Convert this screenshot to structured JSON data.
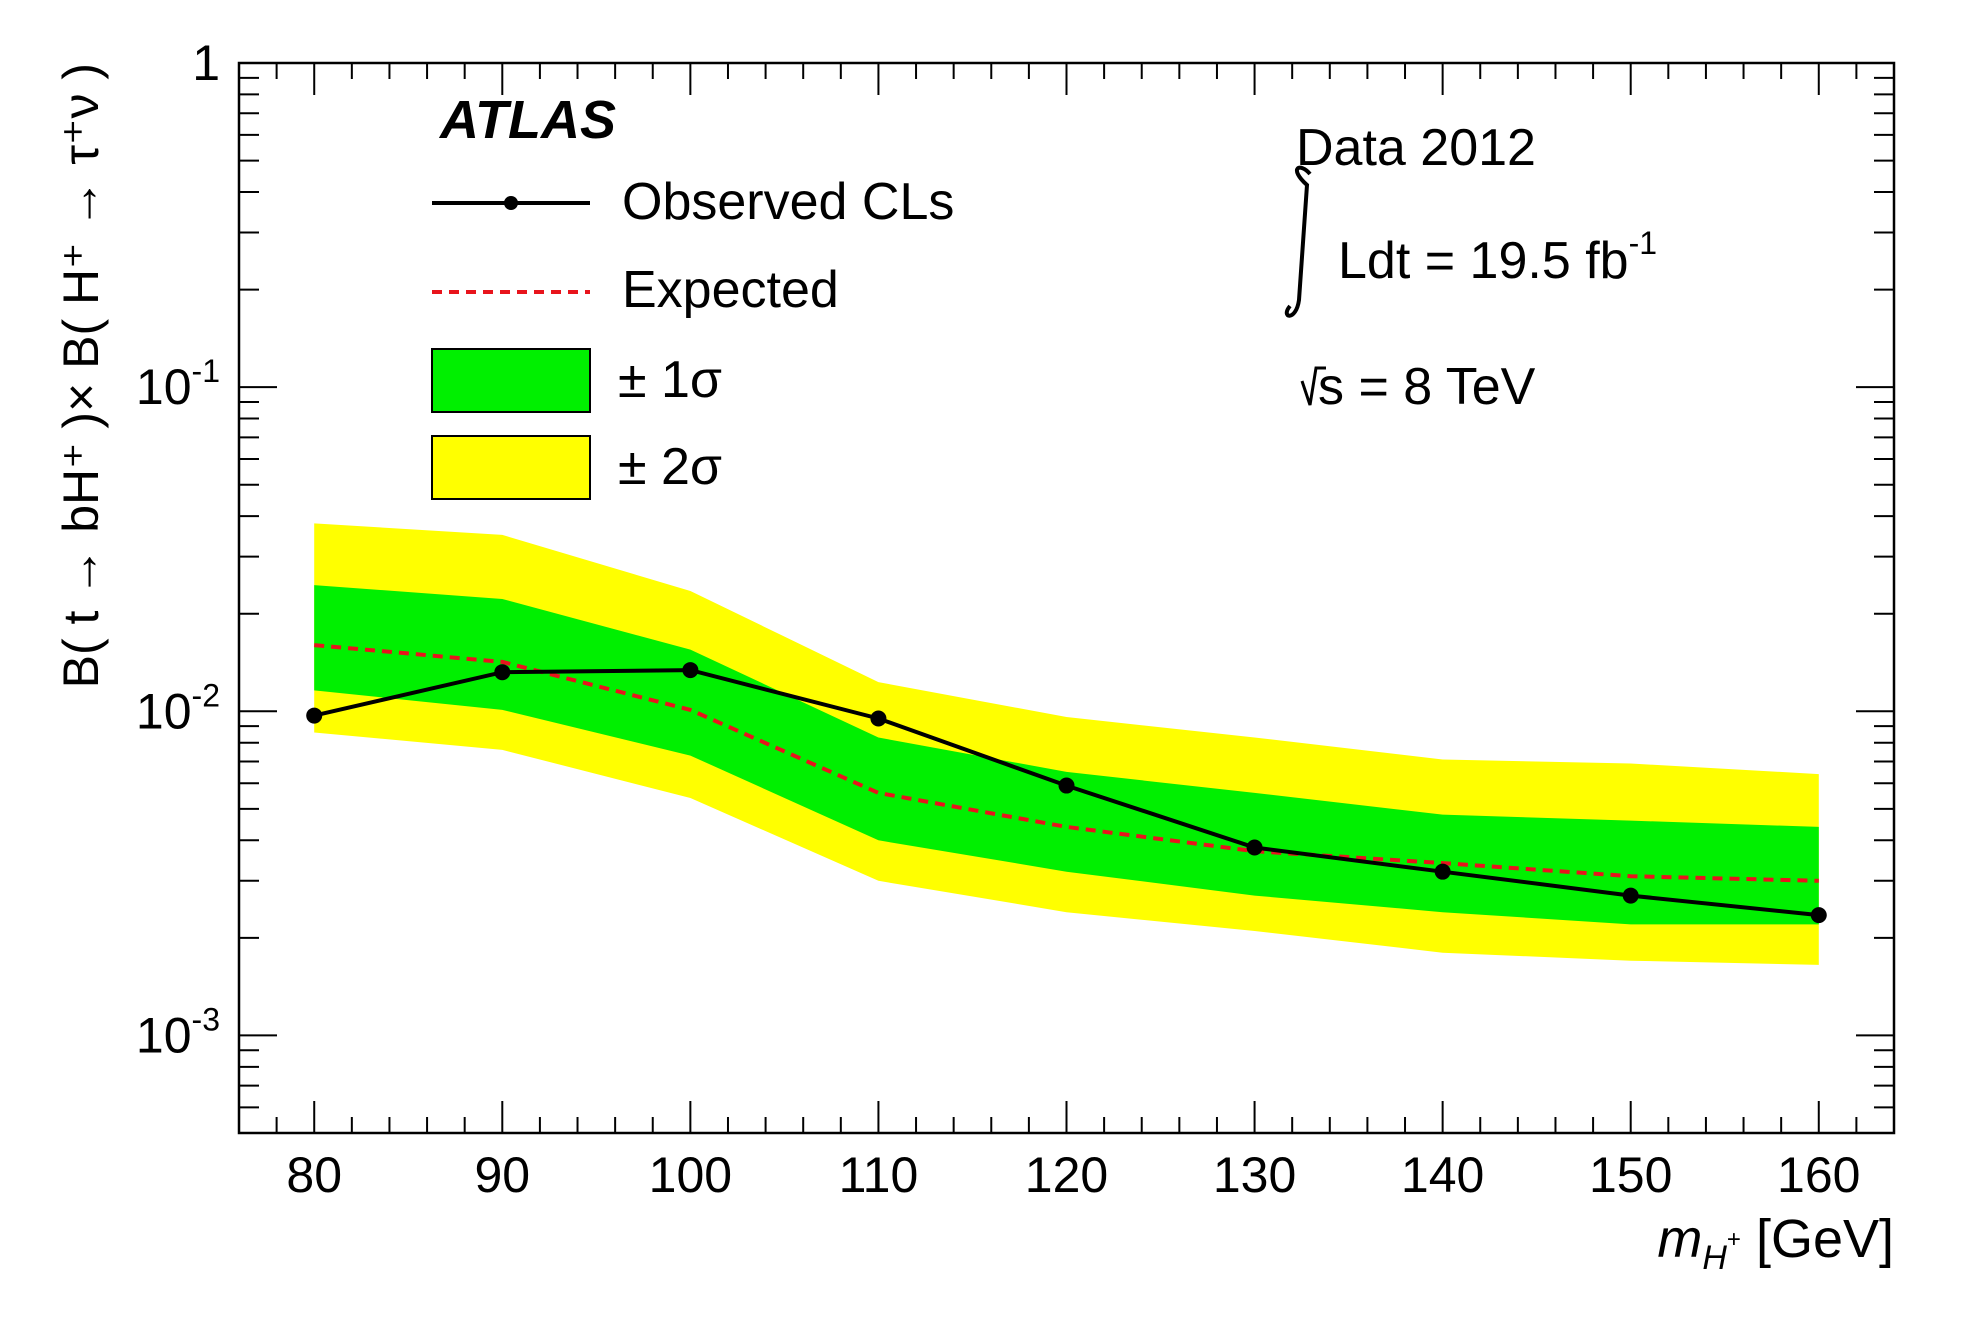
{
  "chart_data": {
    "type": "line",
    "experiment": "ATLAS",
    "xlabel_main": "m",
    "xlabel_sub": "H",
    "xlabel_sup": "+",
    "xlabel_unit": "[GeV]",
    "ylabel": "B( t → bH⁺ )× B( H⁺ → τ⁺ν )",
    "xlim": [
      76,
      164
    ],
    "ylim": [
      0.0005,
      1
    ],
    "yscale": "log",
    "x_ticks": [
      80,
      90,
      100,
      110,
      120,
      130,
      140,
      150,
      160
    ],
    "x_tick_labels": [
      "80",
      "90",
      "100",
      "110",
      "120",
      "130",
      "140",
      "150",
      "160"
    ],
    "y_tick_labels": [
      {
        "base": "1",
        "exp": ""
      },
      {
        "base": "10",
        "exp": "-1"
      },
      {
        "base": "10",
        "exp": "-2"
      },
      {
        "base": "10",
        "exp": "-3"
      }
    ],
    "y_tick_values": [
      1,
      0.1,
      0.01,
      0.001
    ],
    "x": [
      80,
      90,
      100,
      110,
      120,
      130,
      140,
      150,
      160
    ],
    "series": [
      {
        "name": "Observed CLs",
        "values": [
          0.0097,
          0.0132,
          0.0134,
          0.0095,
          0.0059,
          0.0038,
          0.0032,
          0.0027,
          0.00235
        ],
        "color": "#000000"
      },
      {
        "name": "Expected",
        "values": [
          0.016,
          0.0142,
          0.0101,
          0.0056,
          0.0044,
          0.0037,
          0.0034,
          0.0031,
          0.003
        ],
        "color": "#e8141c"
      }
    ],
    "band_1sigma": {
      "name": "± 1σ",
      "lower": [
        0.0116,
        0.0101,
        0.0073,
        0.004,
        0.0032,
        0.0027,
        0.0024,
        0.0022,
        0.0022
      ],
      "upper": [
        0.0245,
        0.0222,
        0.0155,
        0.0083,
        0.0065,
        0.0056,
        0.0048,
        0.0046,
        0.0044
      ],
      "color": "#00f000"
    },
    "band_2sigma": {
      "name": "± 2σ",
      "lower": [
        0.0086,
        0.0076,
        0.0054,
        0.003,
        0.0024,
        0.0021,
        0.0018,
        0.0017,
        0.00165
      ],
      "upper": [
        0.038,
        0.035,
        0.0235,
        0.0123,
        0.0096,
        0.0083,
        0.0071,
        0.0069,
        0.0064
      ],
      "color": "#ffff00"
    },
    "legend": [
      "Observed CLs",
      "Expected",
      "± 1σ",
      "± 2σ"
    ],
    "annotations": {
      "data_label": "Data 2012",
      "lumi_label": "Ldt = 19.5 fb",
      "lumi_exp": "-1",
      "energy_label": "s = 8 TeV"
    }
  }
}
